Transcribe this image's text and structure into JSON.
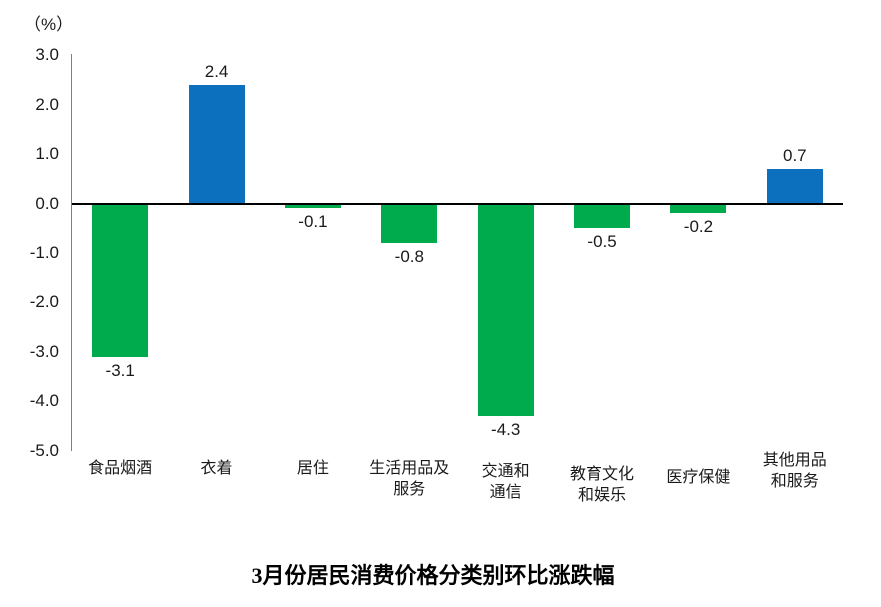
{
  "chart_data": {
    "type": "bar",
    "title": "3月份居民消费价格分类别环比涨跌幅",
    "unit_label": "（%）",
    "categories": [
      "食品烟酒",
      "衣着",
      "居住",
      "生活用品及服务",
      "交通和通信",
      "教育文化和娱乐",
      "医疗保健",
      "其他用品和服务"
    ],
    "category_label_lines": [
      [
        "食品烟酒"
      ],
      [
        "衣着"
      ],
      [
        "居住"
      ],
      [
        "生活用品及",
        "服务"
      ],
      [
        "交通和",
        "通信"
      ],
      [
        "教育文化",
        "和娱乐"
      ],
      [
        "医疗保健"
      ],
      [
        "其他用品",
        "和服务"
      ]
    ],
    "values": [
      -3.1,
      2.4,
      -0.1,
      -0.8,
      -4.3,
      -0.5,
      -0.2,
      0.7
    ],
    "value_labels": [
      "-3.1",
      "2.4",
      "-0.1",
      "-0.8",
      "-4.3",
      "-0.5",
      "-0.2",
      "0.7"
    ],
    "y_ticks": [
      "3.0",
      "2.0",
      "1.0",
      "0.0",
      "-1.0",
      "-2.0",
      "-3.0",
      "-4.0",
      "-5.0"
    ],
    "y_tick_values": [
      3.0,
      2.0,
      1.0,
      0.0,
      -1.0,
      -2.0,
      -3.0,
      -4.0,
      -5.0
    ],
    "ylim": [
      -5.0,
      3.0
    ],
    "xlabel": "",
    "ylabel": "（%）",
    "positive_color": "#0C70BE",
    "negative_color": "#00AB4E",
    "bar_colors": [
      "#00AB4E",
      "#0C70BE",
      "#00AB4E",
      "#00AB4E",
      "#00AB4E",
      "#00AB4E",
      "#00AB4E",
      "#0C70BE"
    ],
    "axis_line_color": "#808080",
    "zero_line_color": "#000000",
    "grid": "off",
    "legend": "none"
  }
}
